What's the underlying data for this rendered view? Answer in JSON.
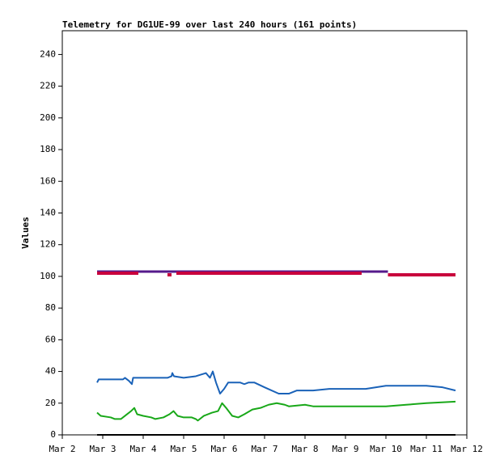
{
  "chart_data": {
    "type": "line",
    "title": "Telemetry for DG1UE-99 over last 240 hours (161 points)",
    "ylabel": "Values",
    "xlim": [
      2,
      12
    ],
    "xticks": [
      {
        "value": 2,
        "label": "Mar 2"
      },
      {
        "value": 3,
        "label": "Mar 3"
      },
      {
        "value": 4,
        "label": "Mar 4"
      },
      {
        "value": 5,
        "label": "Mar 5"
      },
      {
        "value": 6,
        "label": "Mar 6"
      },
      {
        "value": 7,
        "label": "Mar 7"
      },
      {
        "value": 8,
        "label": "Mar 8"
      },
      {
        "value": 9,
        "label": "Mar 9"
      },
      {
        "value": 10,
        "label": "Mar 10"
      },
      {
        "value": 11,
        "label": "Mar 11"
      },
      {
        "value": 12,
        "label": "Mar 12"
      }
    ],
    "ylim": [
      0,
      255
    ],
    "yticks": [
      0,
      20,
      40,
      60,
      80,
      100,
      120,
      140,
      160,
      180,
      200,
      220,
      240
    ],
    "grid": false,
    "series": [
      {
        "color": "#551a8b",
        "width": 3,
        "x": [
          2.86,
          10.05
        ],
        "values": [
          103,
          103
        ]
      },
      {
        "color": "#c8003c",
        "width": 4,
        "x": [
          2.86,
          3.88,
          null,
          4.6,
          4.7,
          null,
          4.82,
          9.4,
          null,
          10.05,
          11.72
        ],
        "values": [
          102,
          102,
          null,
          101,
          101,
          null,
          102,
          102,
          null,
          101,
          101
        ]
      },
      {
        "color": "#1a62b8",
        "width": 2,
        "x": [
          2.86,
          2.9,
          3.5,
          3.55,
          3.65,
          3.72,
          3.75,
          4.6,
          4.7,
          4.72,
          4.76,
          5.0,
          5.3,
          5.55,
          5.65,
          5.72,
          5.8,
          5.9,
          6.0,
          6.1,
          6.4,
          6.5,
          6.6,
          6.75,
          7.0,
          7.35,
          7.6,
          7.8,
          8.2,
          8.6,
          9.0,
          9.5,
          10.0,
          10.5,
          11.0,
          11.4,
          11.72
        ],
        "values": [
          33,
          35,
          35,
          36,
          34,
          32,
          36,
          36,
          37,
          39,
          37,
          36,
          37,
          39,
          36,
          40,
          33,
          26,
          29,
          33,
          33,
          32,
          33,
          33,
          30,
          26,
          26,
          28,
          28,
          29,
          29,
          29,
          31,
          31,
          31,
          30,
          28
        ]
      },
      {
        "color": "#19a819",
        "width": 2,
        "x": [
          2.86,
          2.95,
          3.2,
          3.3,
          3.45,
          3.55,
          3.7,
          3.78,
          3.85,
          4.0,
          4.2,
          4.3,
          4.5,
          4.65,
          4.75,
          4.85,
          5.0,
          5.2,
          5.3,
          5.35,
          5.5,
          5.7,
          5.85,
          5.95,
          6.05,
          6.2,
          6.35,
          6.5,
          6.7,
          6.9,
          7.1,
          7.3,
          7.5,
          7.6,
          8.0,
          8.2,
          9.0,
          10.0,
          10.5,
          11.0,
          11.72
        ],
        "values": [
          14,
          12,
          11,
          10,
          10,
          12,
          15,
          17,
          13,
          12,
          11,
          10,
          11,
          13,
          15,
          12,
          11,
          11,
          10,
          9,
          12,
          14,
          15,
          20,
          17,
          12,
          11,
          13,
          16,
          17,
          19,
          20,
          19,
          18,
          19,
          18,
          18,
          18,
          19,
          20,
          21
        ]
      },
      {
        "color": "#000000",
        "width": 2,
        "x": [
          2.86,
          11.72
        ],
        "values": [
          0,
          0
        ]
      }
    ]
  }
}
